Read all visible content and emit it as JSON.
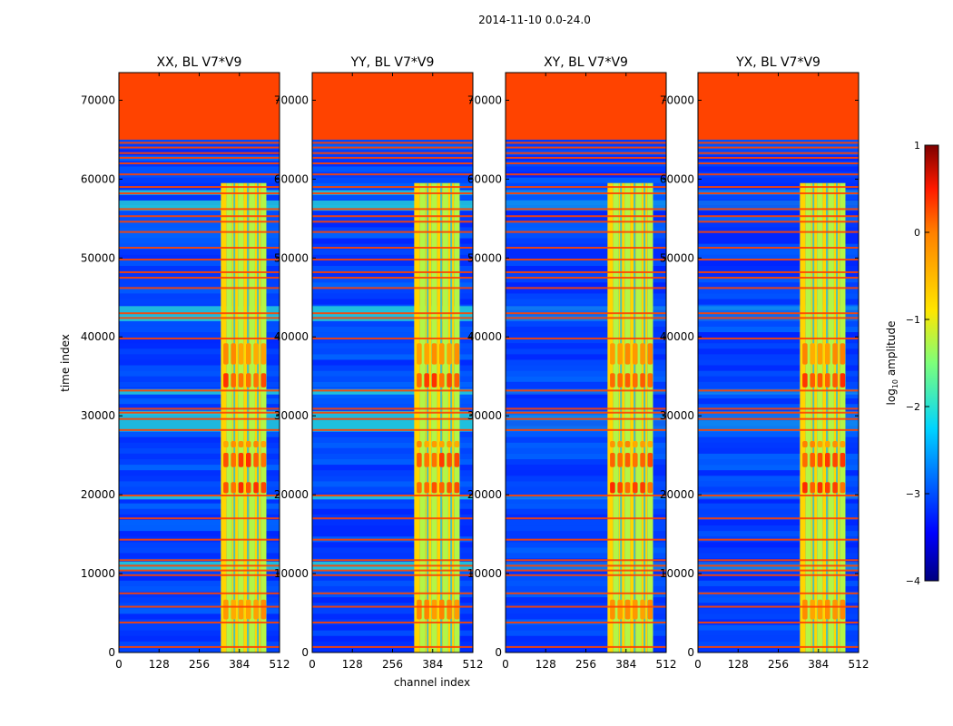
{
  "chart_data": {
    "type": "heatmap",
    "suptitle": "2014-11-10 0.0-24.0",
    "xlabel": "channel index",
    "ylabel": "time index",
    "xlim": [
      0,
      512
    ],
    "ylim": [
      0,
      73500
    ],
    "xticks": [
      0,
      128,
      256,
      384,
      512
    ],
    "yticks": [
      0,
      10000,
      20000,
      30000,
      40000,
      50000,
      60000,
      70000
    ],
    "colormap": "jet",
    "panels": [
      {
        "title": "XX, BL V7*V9"
      },
      {
        "title": "YY, BL V7*V9"
      },
      {
        "title": "XY, BL V7*V9"
      },
      {
        "title": "YX, BL V7*V9"
      }
    ],
    "colorbar": {
      "label": "log",
      "label_sub": "10",
      "label_suffix": " amplitude",
      "range": [
        -4,
        1
      ],
      "ticks": [
        1,
        0,
        -1,
        -2,
        -3,
        -4
      ]
    },
    "features": {
      "blank_fill_value": 0.3,
      "blank_time_start": 65000,
      "band_channel_start": 325,
      "band_channel_end": 470
    }
  }
}
